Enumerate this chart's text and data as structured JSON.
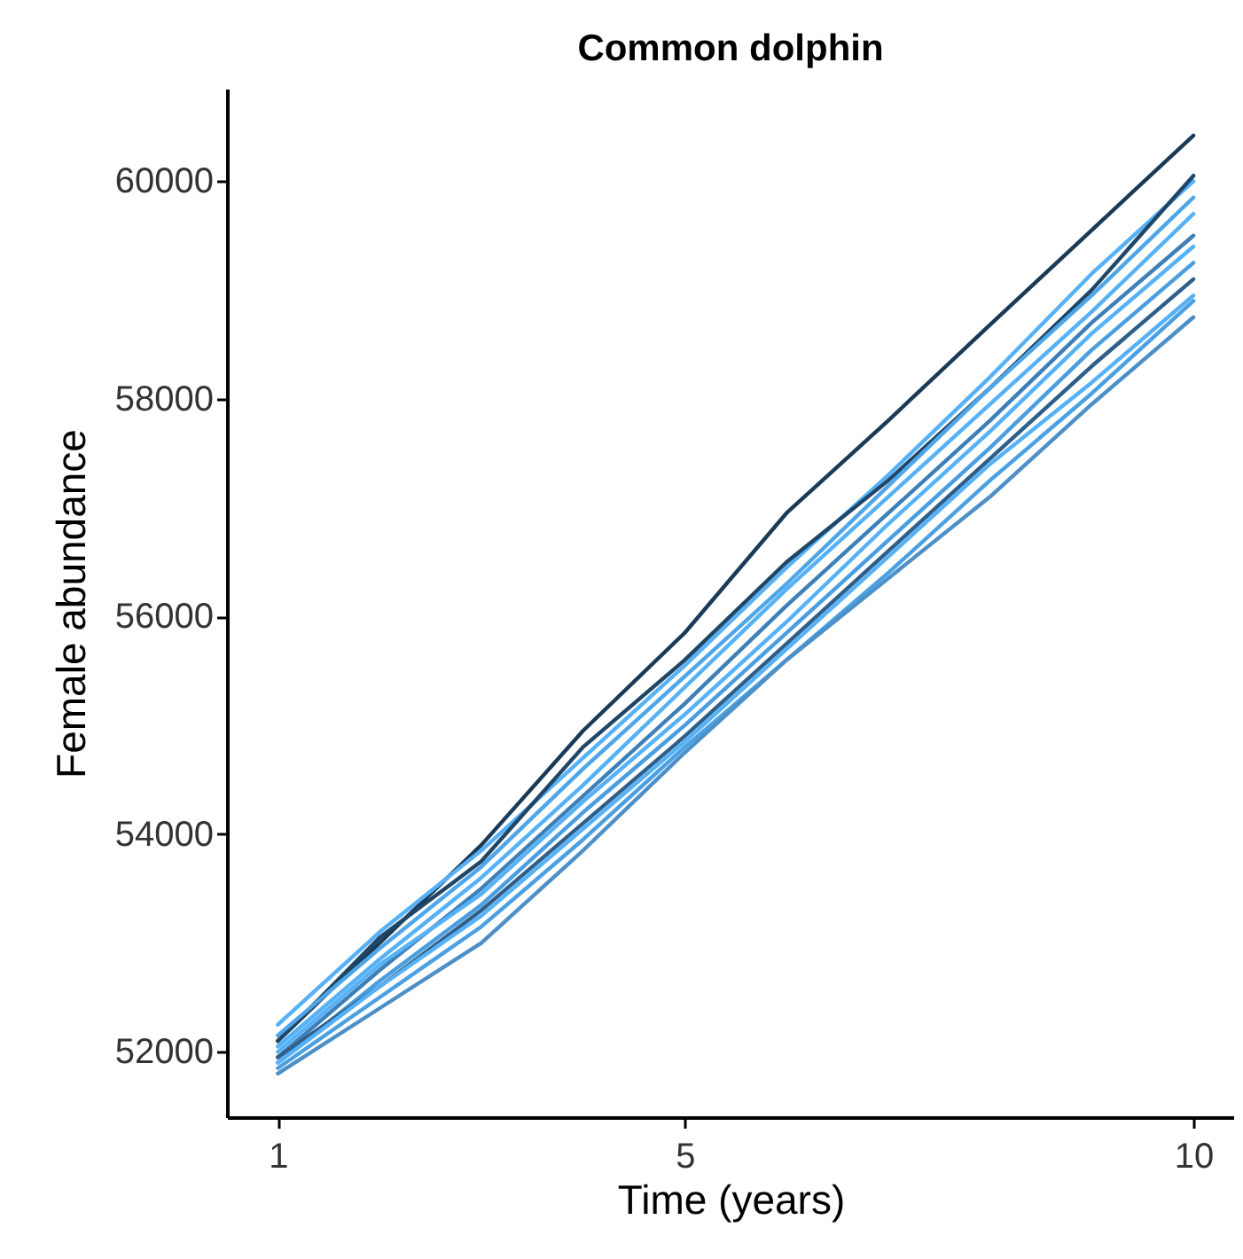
{
  "chart_data": {
    "type": "line",
    "title": "Common dolphin",
    "xlabel": "Time (years)",
    "ylabel": "Female abundance",
    "x": [
      1,
      2,
      3,
      4,
      5,
      6,
      7,
      8,
      9,
      10
    ],
    "xlim": [
      0.5,
      10.4
    ],
    "xticks": [
      1,
      5,
      10
    ],
    "ylim": [
      51400,
      60850
    ],
    "yticks": [
      52000,
      54000,
      56000,
      58000,
      60000
    ],
    "grid": false,
    "legend": false,
    "line_style": "solid",
    "series": [
      {
        "color": "#1b3a57",
        "values": [
          52100,
          53000,
          53900,
          54950,
          55850,
          56950,
          57800,
          58680,
          59550,
          60420
        ]
      },
      {
        "color": "#56b1f7",
        "values": [
          52250,
          53100,
          53850,
          54700,
          55550,
          56450,
          57300,
          58200,
          59150,
          60000
        ]
      },
      {
        "color": "#1f4666",
        "values": [
          52100,
          53050,
          53750,
          54800,
          55600,
          56500,
          57250,
          58100,
          59000,
          60050
        ]
      },
      {
        "color": "#4ea5e8",
        "values": [
          52150,
          52950,
          53700,
          54600,
          55450,
          56300,
          57200,
          58100,
          58950,
          59850
        ]
      },
      {
        "color": "#56b1f7",
        "values": [
          52050,
          52850,
          53600,
          54450,
          55350,
          56250,
          57100,
          57950,
          58800,
          59700
        ]
      },
      {
        "color": "#3d7fb8",
        "values": [
          51950,
          52750,
          53500,
          54350,
          55200,
          56100,
          56950,
          57800,
          58700,
          59500
        ]
      },
      {
        "color": "#56b1f7",
        "values": [
          52000,
          52800,
          53450,
          54300,
          55100,
          55950,
          56850,
          57700,
          58600,
          59400
        ]
      },
      {
        "color": "#4a9ddf",
        "values": [
          51900,
          52650,
          53350,
          54200,
          55000,
          55850,
          56700,
          57550,
          58450,
          59250
        ]
      },
      {
        "color": "#2d5f8a",
        "values": [
          51950,
          52600,
          53300,
          54100,
          54900,
          55750,
          56600,
          57450,
          58300,
          59100
        ]
      },
      {
        "color": "#56b1f7",
        "values": [
          51900,
          52600,
          53250,
          54050,
          54850,
          55700,
          56550,
          57400,
          58150,
          58950
        ]
      },
      {
        "color": "#4ba0e2",
        "values": [
          51850,
          52500,
          53150,
          53950,
          54800,
          55600,
          56400,
          57250,
          58050,
          58900
        ]
      },
      {
        "color": "#4d90c8",
        "values": [
          51800,
          52400,
          53000,
          53850,
          54750,
          55600,
          56350,
          57100,
          57950,
          58750
        ]
      }
    ]
  }
}
